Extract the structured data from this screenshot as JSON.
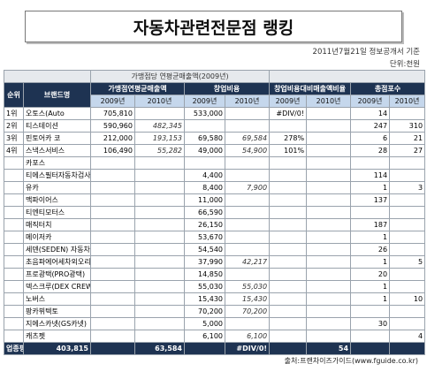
{
  "header": {
    "title": "자동차관련전문점 랭킹",
    "date_note": "2011년7월21일 정보공개서 기준",
    "unit_note": "단위:천원"
  },
  "table": {
    "group_header": "가맹점당 연평균매출액(2009년)",
    "columns": [
      "순위",
      "브랜드명",
      "가맹점연평균매출액",
      "창업비용",
      "창업비용대비매출액비율",
      "총점포수"
    ],
    "years": [
      "2009년",
      "2010년",
      "2009년",
      "2010년",
      "2009년",
      "2010년",
      "2009년",
      "2010년"
    ],
    "rows": [
      [
        "1위",
        "오토스(Auto",
        "705,810",
        null,
        "533,000",
        null,
        "#DIV/0!",
        null,
        "14",
        null
      ],
      [
        "2위",
        "티스테이션",
        "590,960",
        "482,345",
        null,
        null,
        null,
        null,
        "247",
        "310"
      ],
      [
        "3위",
        "핀토어카 코",
        "212,000",
        "193,153",
        "69,580",
        "69,584",
        "278%",
        null,
        "6",
        "21"
      ],
      [
        "4위",
        "스낵스서비스",
        "106,490",
        "55,282",
        "49,000",
        "54,900",
        "101%",
        null,
        "28",
        "27"
      ],
      [
        null,
        "카포스",
        null,
        null,
        null,
        null,
        null,
        null,
        null,
        null
      ],
      [
        null,
        "티에스필터자동차검사소",
        null,
        null,
        "4,400",
        null,
        null,
        null,
        "114",
        null
      ],
      [
        null,
        "유카",
        null,
        null,
        "8,400",
        "7,900",
        null,
        null,
        "1",
        "3"
      ],
      [
        null,
        "맥파이어스",
        null,
        null,
        "11,000",
        null,
        null,
        null,
        "137",
        null
      ],
      [
        null,
        "티엔티모터스",
        null,
        null,
        "66,590",
        null,
        null,
        null,
        null,
        null
      ],
      [
        null,
        "매직터치",
        null,
        null,
        "26,150",
        null,
        null,
        null,
        "187",
        null
      ],
      [
        null,
        "메이저카",
        null,
        null,
        "53,670",
        null,
        null,
        null,
        "1",
        null
      ],
      [
        null,
        "세덴(SEDEN) 자동차외형복원",
        null,
        null,
        "54,540",
        null,
        null,
        null,
        "26",
        null
      ],
      [
        null,
        "초음파에어세차외오리",
        null,
        null,
        "37,990",
        "42,217",
        null,
        null,
        "1",
        "5"
      ],
      [
        null,
        "프로광택(PRO광택)",
        null,
        null,
        "14,850",
        null,
        null,
        null,
        "20",
        null
      ],
      [
        null,
        "덱스크루(DEX CREW)",
        null,
        null,
        "55,030",
        "55,030",
        null,
        null,
        "1",
        null
      ],
      [
        null,
        "노버스",
        null,
        null,
        "15,430",
        "15,430",
        null,
        null,
        "1",
        "10"
      ],
      [
        null,
        "팡카뷔텍토",
        null,
        null,
        "70,200",
        "70,200",
        null,
        null,
        null,
        null
      ],
      [
        null,
        "지에스카넷(GS카넷)",
        null,
        null,
        "5,000",
        null,
        null,
        null,
        "30",
        null
      ],
      [
        null,
        "캐츠펫",
        null,
        null,
        "6,100",
        "6,100",
        null,
        null,
        null,
        "4"
      ]
    ],
    "footer": [
      "업종평균",
      "403,815",
      null,
      "63,584",
      null,
      "#DIV/0!",
      null,
      "54",
      null,
      null
    ]
  },
  "source": "출처:프랜차이즈가이드(www.fguide.co.kr)"
}
